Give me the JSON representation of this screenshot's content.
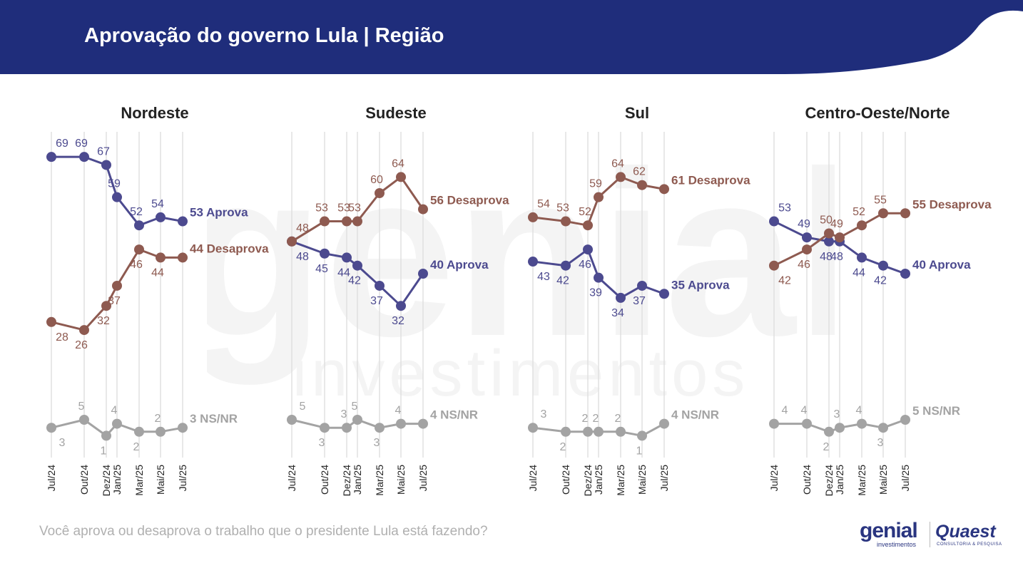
{
  "title": "Aprovação do governo Lula | Região",
  "question": "Você aprova ou desaprova o trabalho que o presidente Lula está fazendo?",
  "logos": {
    "genial": "genial",
    "genial_sub": "investimentos",
    "quaest": "Quaest",
    "quaest_sub": "CONSULTORIA & PESQUISA"
  },
  "watermark": {
    "line1": "genial",
    "line2": "investimentos"
  },
  "colors": {
    "aprova": "#4c4a8f",
    "desaprova": "#8e5a50",
    "nsnr": "#a3a3a3",
    "header": "#1f2d7b",
    "gridline": "#e0e0e0"
  },
  "chart_data": [
    {
      "type": "line",
      "title": "Nordeste",
      "categories": [
        "Jul/24",
        "Out/24",
        "Dez/24",
        "Jan/25",
        "Mar/25",
        "Mai/25",
        "Jul/25"
      ],
      "series": [
        {
          "name": "Aprova",
          "values": [
            69,
            69,
            67,
            59,
            52,
            54,
            53
          ],
          "end_label": "53 Aprova"
        },
        {
          "name": "Desaprova",
          "values": [
            28,
            26,
            32,
            37,
            46,
            44,
            44
          ],
          "end_label": "44 Desaprova"
        },
        {
          "name": "NS/NR",
          "values": [
            3,
            5,
            1,
            4,
            2,
            2,
            3
          ],
          "end_label": "3 NS/NR"
        }
      ]
    },
    {
      "type": "line",
      "title": "Sudeste",
      "categories": [
        "Jul/24",
        "Out/24",
        "Dez/24",
        "Jan/25",
        "Mar/25",
        "Mai/25",
        "Jul/25"
      ],
      "series": [
        {
          "name": "Aprova",
          "values": [
            48,
            45,
            44,
            42,
            37,
            32,
            40
          ],
          "end_label": "40 Aprova"
        },
        {
          "name": "Desaprova",
          "values": [
            48,
            53,
            53,
            53,
            60,
            64,
            56
          ],
          "end_label": "56 Desaprova"
        },
        {
          "name": "NS/NR",
          "values": [
            5,
            3,
            3,
            5,
            3,
            4,
            4
          ],
          "end_label": "4 NS/NR"
        }
      ]
    },
    {
      "type": "line",
      "title": "Sul",
      "categories": [
        "Jul/24",
        "Out/24",
        "Dez/24",
        "Jan/25",
        "Mar/25",
        "Mai/25",
        "Jul/25"
      ],
      "series": [
        {
          "name": "Aprova",
          "values": [
            43,
            42,
            46,
            39,
            34,
            37,
            35
          ],
          "end_label": "35 Aprova"
        },
        {
          "name": "Desaprova",
          "values": [
            54,
            53,
            52,
            59,
            64,
            62,
            61
          ],
          "end_label": "61 Desaprova"
        },
        {
          "name": "NS/NR",
          "values": [
            3,
            2,
            2,
            2,
            2,
            1,
            4
          ],
          "end_label": "4 NS/NR"
        }
      ]
    },
    {
      "type": "line",
      "title": "Centro-Oeste/Norte",
      "categories": [
        "Jul/24",
        "Out/24",
        "Dez/24",
        "Jan/25",
        "Mar/25",
        "Mai/25",
        "Jul/25"
      ],
      "series": [
        {
          "name": "Aprova",
          "values": [
            53,
            49,
            48,
            48,
            44,
            42,
            40
          ],
          "end_label": "40 Aprova"
        },
        {
          "name": "Desaprova",
          "values": [
            42,
            46,
            50,
            49,
            52,
            55,
            55
          ],
          "end_label": "55 Desaprova"
        },
        {
          "name": "NS/NR",
          "values": [
            4,
            4,
            2,
            3,
            4,
            3,
            5
          ],
          "end_label": "5 NS/NR"
        }
      ]
    }
  ]
}
